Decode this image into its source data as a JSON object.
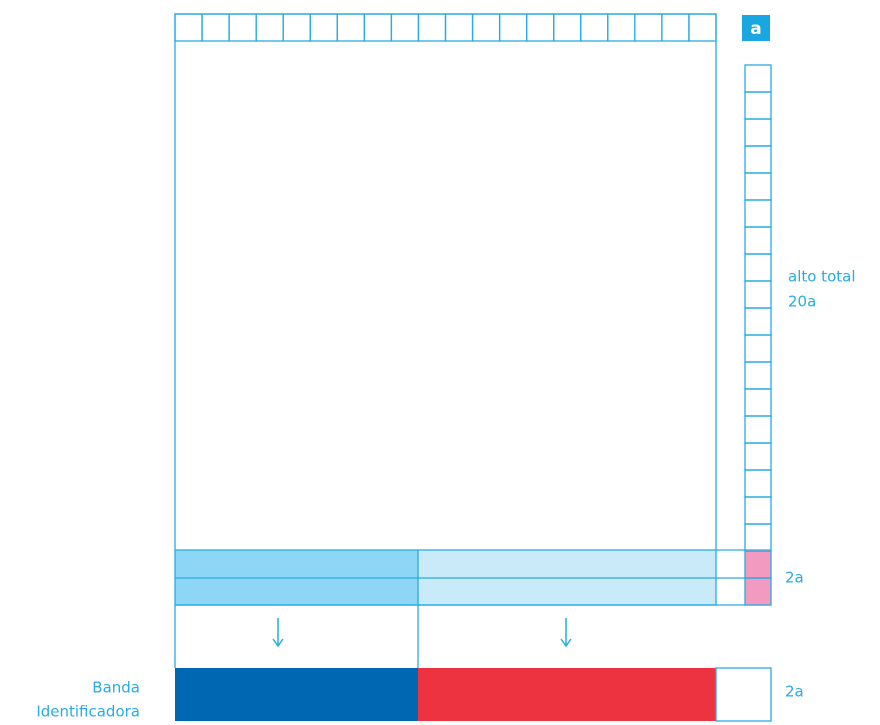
{
  "corner_label": "a",
  "height_label": {
    "line1": "alto total",
    "line2": "20a"
  },
  "band_height_label": "2a",
  "band": {
    "label_line1": "Banda",
    "label_line2": "Identificadora",
    "height_label": "2a"
  }
}
